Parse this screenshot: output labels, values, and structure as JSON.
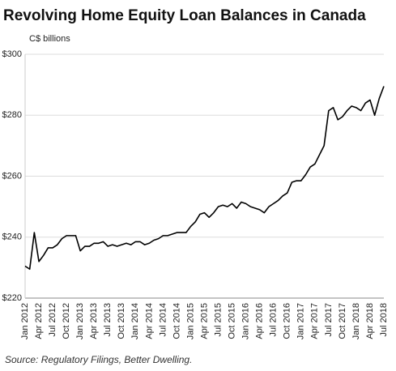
{
  "chart_data": {
    "type": "line",
    "title": "Revolving Home Equity Loan Balances in Canada",
    "y_axis_label": "C$ billions",
    "source": "Source: Regulatory Filings, Better Dwelling.",
    "categories": [
      "Jan 2012",
      null,
      null,
      "Apr 2012",
      null,
      null,
      "Jul 2012",
      null,
      null,
      "Oct 2012",
      null,
      null,
      "Jan 2013",
      null,
      null,
      "Apr 2013",
      null,
      null,
      "Jul 2013",
      null,
      null,
      "Oct 2013",
      null,
      null,
      "Jan 2014",
      null,
      null,
      "Apr 2014",
      null,
      null,
      "Jul 2014",
      null,
      null,
      "Oct 2014",
      null,
      null,
      "Jan 2015",
      null,
      null,
      "Apr 2015",
      null,
      null,
      "Jul 2015",
      null,
      null,
      "Oct 2015",
      null,
      null,
      "Jan 2016",
      null,
      null,
      "Apr 2016",
      null,
      null,
      "Jul 2016",
      null,
      null,
      "Oct 2016",
      null,
      null,
      "Jan 2017",
      null,
      null,
      "Apr 2017",
      null,
      null,
      "Jul 2017",
      null,
      null,
      "Oct 2017",
      null,
      null,
      "Jan 2018",
      null,
      null,
      "Apr 2018",
      null,
      null,
      "Jul 2018"
    ],
    "values": [
      230.5,
      229.5,
      241.5,
      232,
      234,
      236.5,
      236.5,
      237.5,
      239.5,
      240.5,
      240.5,
      240.5,
      235.5,
      237,
      237,
      238,
      238,
      238.5,
      237,
      237.5,
      237,
      237.5,
      238,
      237.5,
      238.5,
      238.5,
      237.5,
      238,
      239,
      239.5,
      240.5,
      240.5,
      241,
      241.5,
      241.5,
      241.5,
      243.5,
      245,
      247.5,
      248,
      246.5,
      248,
      250,
      250.5,
      250,
      251,
      249.5,
      251.5,
      251,
      250,
      249.5,
      249,
      248,
      250,
      251,
      252,
      253.5,
      254.5,
      258,
      258.5,
      258.5,
      260.5,
      263,
      264,
      267,
      270,
      281.5,
      282.5,
      278.5,
      279.5,
      281.5,
      283,
      282.5,
      281.5,
      284,
      285,
      280,
      285.5,
      289.5
    ],
    "color": "#000000",
    "ylim": [
      220,
      300
    ],
    "yticks": [
      {
        "value": 220,
        "label": "$220"
      },
      {
        "value": 240,
        "label": "$240"
      },
      {
        "value": 260,
        "label": "$260"
      },
      {
        "value": 280,
        "label": "$280"
      },
      {
        "value": 300,
        "label": "$300"
      }
    ],
    "grid": true
  }
}
